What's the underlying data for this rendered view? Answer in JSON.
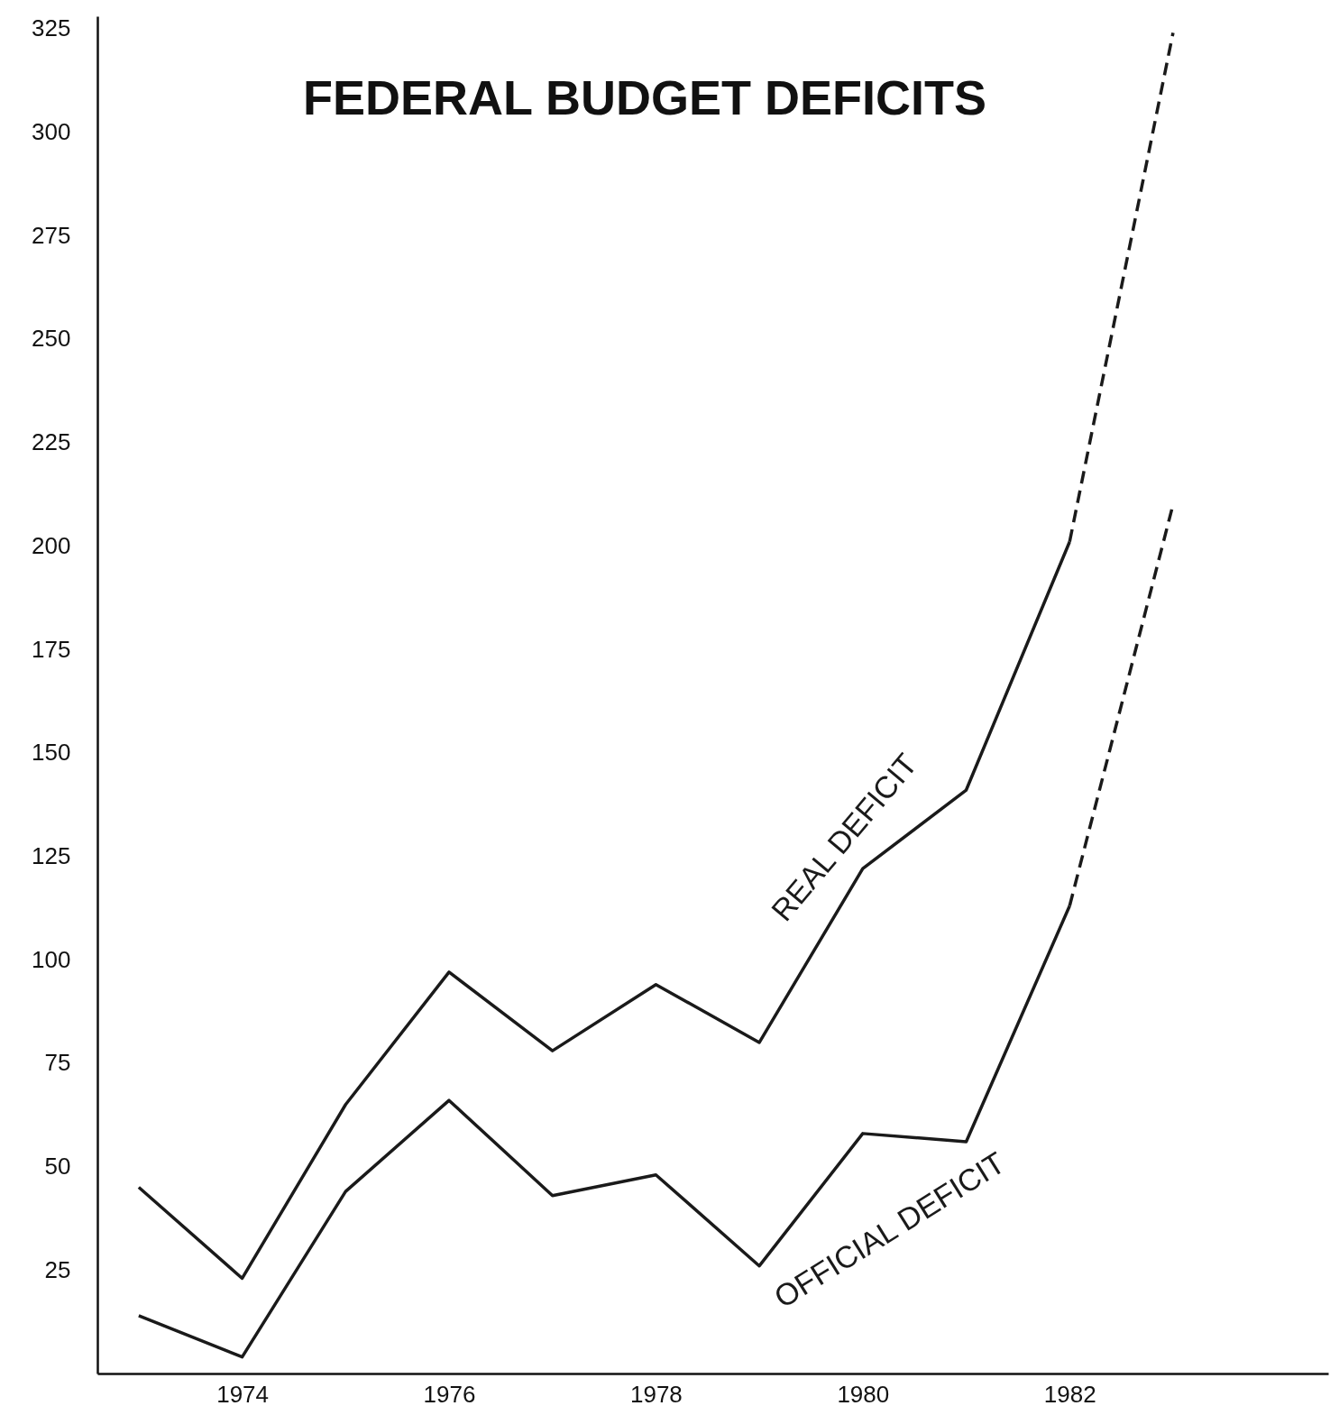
{
  "chart_data": {
    "type": "line",
    "title": "FEDERAL BUDGET DEFICITS",
    "xlim": [
      1972.6,
      1984.5
    ],
    "xticks": [
      1974,
      1976,
      1978,
      1980,
      1982
    ],
    "ylim": [
      0,
      328
    ],
    "yticks": [
      25,
      50,
      75,
      100,
      125,
      150,
      175,
      200,
      225,
      250,
      275,
      300,
      325
    ],
    "grid": false,
    "marker": "none",
    "series": [
      {
        "name": "REAL DEFICIT",
        "color": "#1a1a1a",
        "line_style": "solid",
        "x": [
          1973,
          1974,
          1975,
          1976,
          1977,
          1978,
          1979,
          1980,
          1981,
          1982
        ],
        "values": [
          45,
          23,
          65,
          97,
          78,
          94,
          80,
          122,
          141,
          201
        ]
      },
      {
        "color": "#1a1a1a",
        "line_style": "dashed",
        "x": [
          1982,
          1983
        ],
        "values": [
          201,
          324
        ]
      },
      {
        "name": "OFFICIAL DEFICIT",
        "color": "#1a1a1a",
        "line_style": "solid",
        "x": [
          1973,
          1974,
          1975,
          1976,
          1977,
          1978,
          1979,
          1980,
          1981,
          1982
        ],
        "values": [
          14,
          4,
          44,
          66,
          43,
          48,
          26,
          58,
          56,
          113
        ]
      },
      {
        "color": "#1a1a1a",
        "line_style": "dashed",
        "x": [
          1982,
          1983
        ],
        "values": [
          113,
          210
        ]
      }
    ]
  }
}
